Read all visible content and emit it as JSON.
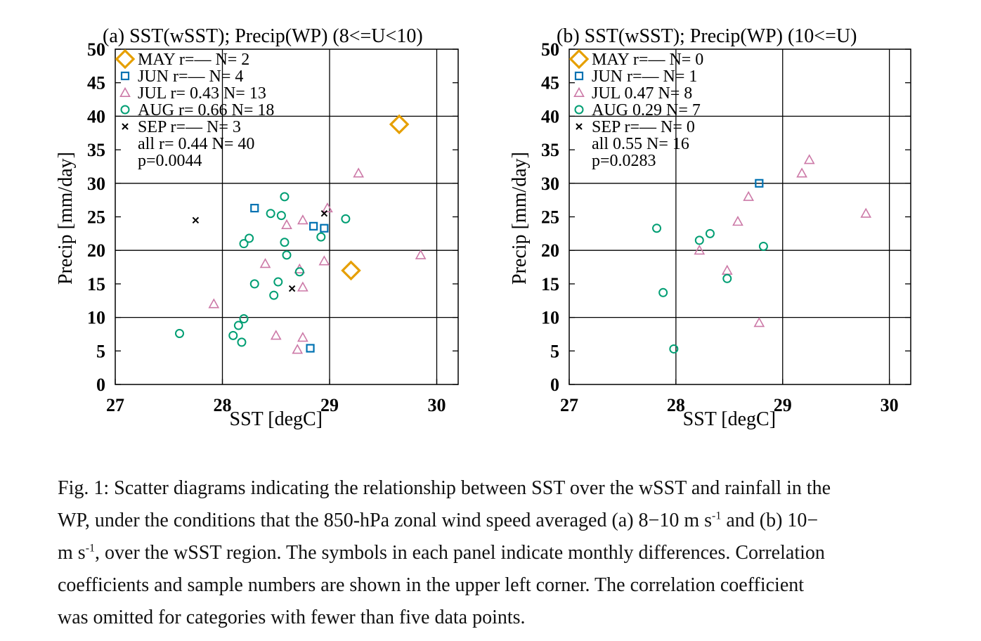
{
  "chart_data": [
    {
      "type": "scatter",
      "title": "(a) SST(wSST); Precip(WP) (8<=U<10)",
      "xlabel": "SST [degC]",
      "ylabel": "Precip [mm/day]",
      "xlim": [
        27,
        30.2
      ],
      "ylim": [
        0,
        50
      ],
      "xticks": [
        27,
        28,
        29,
        30
      ],
      "yticks": [
        0,
        5,
        10,
        15,
        20,
        25,
        30,
        35,
        40,
        45,
        50
      ],
      "grid": true,
      "legend_position": "top-left",
      "legend": [
        "MAY r=— N= 2",
        "JUN r=— N= 4",
        "JUL r= 0.43 N= 13",
        "AUG r= 0.66 N= 18",
        "SEP r=— N= 3",
        "all r= 0.44 N= 40",
        "p=0.0044"
      ],
      "series": [
        {
          "key": "MAY",
          "marker": "diamond",
          "color": "#E69F00",
          "points": [
            [
              29.65,
              38.8
            ],
            [
              29.2,
              17.0
            ]
          ]
        },
        {
          "key": "JUN",
          "marker": "square",
          "color": "#0072B2",
          "points": [
            [
              28.3,
              26.3
            ],
            [
              28.85,
              23.6
            ],
            [
              28.95,
              23.3
            ],
            [
              28.82,
              5.4
            ]
          ]
        },
        {
          "key": "JUL",
          "marker": "triangle",
          "color": "#CC79A7",
          "points": [
            [
              29.27,
              31.5
            ],
            [
              28.98,
              26.3
            ],
            [
              28.75,
              24.5
            ],
            [
              28.6,
              23.8
            ],
            [
              28.95,
              18.4
            ],
            [
              29.85,
              19.3
            ],
            [
              28.4,
              18.0
            ],
            [
              28.72,
              17.2
            ],
            [
              28.75,
              14.5
            ],
            [
              27.92,
              12.0
            ],
            [
              28.5,
              7.3
            ],
            [
              28.75,
              7.0
            ],
            [
              28.7,
              5.2
            ]
          ]
        },
        {
          "key": "AUG",
          "marker": "circle",
          "color": "#009E73",
          "points": [
            [
              28.58,
              28.0
            ],
            [
              28.45,
              25.5
            ],
            [
              28.55,
              25.2
            ],
            [
              29.15,
              24.7
            ],
            [
              28.92,
              22.0
            ],
            [
              28.25,
              21.8
            ],
            [
              28.2,
              21.0
            ],
            [
              28.58,
              21.2
            ],
            [
              28.6,
              19.3
            ],
            [
              28.72,
              16.8
            ],
            [
              28.3,
              15.0
            ],
            [
              28.52,
              15.3
            ],
            [
              28.48,
              13.3
            ],
            [
              28.2,
              9.8
            ],
            [
              28.15,
              8.8
            ],
            [
              28.1,
              7.3
            ],
            [
              28.18,
              6.3
            ],
            [
              27.6,
              7.6
            ]
          ]
        },
        {
          "key": "SEP",
          "marker": "cross",
          "color": "#000000",
          "points": [
            [
              27.75,
              24.5
            ],
            [
              28.95,
              25.5
            ],
            [
              28.65,
              14.3
            ]
          ]
        }
      ]
    },
    {
      "type": "scatter",
      "title": "(b) SST(wSST); Precip(WP) (10<=U)",
      "xlabel": "SST [degC]",
      "ylabel": "Precip [mm/day]",
      "xlim": [
        27,
        30.2
      ],
      "ylim": [
        0,
        50
      ],
      "xticks": [
        27,
        28,
        29,
        30
      ],
      "yticks": [
        0,
        5,
        10,
        15,
        20,
        25,
        30,
        35,
        40,
        45,
        50
      ],
      "grid": true,
      "legend_position": "top-left",
      "legend": [
        "MAY r=— N= 0",
        "JUN r=— N= 1",
        "JUL 0.47 N= 8",
        "AUG 0.29 N= 7",
        "SEP r=— N= 0",
        "all 0.55 N= 16",
        "p=0.0283"
      ],
      "series": [
        {
          "key": "MAY",
          "marker": "diamond",
          "color": "#E69F00",
          "points": []
        },
        {
          "key": "JUN",
          "marker": "square",
          "color": "#0072B2",
          "points": [
            [
              28.78,
              30.0
            ]
          ]
        },
        {
          "key": "JUL",
          "marker": "triangle",
          "color": "#CC79A7",
          "points": [
            [
              29.25,
              33.5
            ],
            [
              29.18,
              31.5
            ],
            [
              28.68,
              28.0
            ],
            [
              29.78,
              25.5
            ],
            [
              28.58,
              24.3
            ],
            [
              28.22,
              20.0
            ],
            [
              28.48,
              17.0
            ],
            [
              28.78,
              9.2
            ]
          ]
        },
        {
          "key": "AUG",
          "marker": "circle",
          "color": "#009E73",
          "points": [
            [
              27.82,
              23.3
            ],
            [
              28.32,
              22.5
            ],
            [
              28.22,
              21.5
            ],
            [
              28.82,
              20.6
            ],
            [
              28.48,
              15.8
            ],
            [
              27.88,
              13.7
            ],
            [
              27.98,
              5.3
            ]
          ]
        },
        {
          "key": "SEP",
          "marker": "cross",
          "color": "#000000",
          "points": []
        }
      ]
    }
  ],
  "caption": {
    "line1": "Fig. 1: Scatter diagrams indicating the relationship between SST over the wSST and rainfall in the",
    "line2_a": "WP, under the conditions that the 850-hPa zonal wind speed averaged (a) 8−10 m s",
    "sup1": "-1",
    "line2_b": " and (b) 10−",
    "line3_a": "m s",
    "sup2": "-1",
    "line3_b": ", over the wSST region. The symbols in each panel indicate monthly differences. Correlation",
    "line4": "coefficients and sample numbers are shown in the upper left corner. The correlation coefficient",
    "line5": "was omitted for categories with fewer than five data points."
  }
}
